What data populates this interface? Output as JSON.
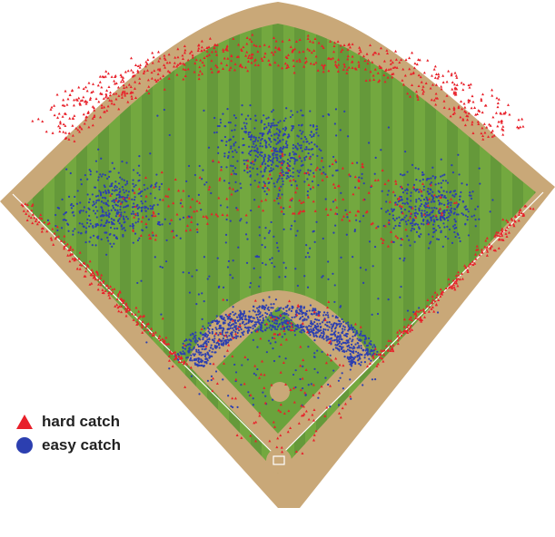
{
  "chart_data": {
    "type": "scatter",
    "title": "",
    "xlabel": "",
    "ylabel": "",
    "legend_position": "bottom-left",
    "grid": false,
    "colors": {
      "hard catch": "#e8202a",
      "easy catch": "#2c3fb0",
      "grass_light": "#73a83f",
      "grass_dark": "#5f9533",
      "dirt": "#c9a878",
      "chalk": "#ffffff"
    },
    "series": [
      {
        "name": "hard catch",
        "marker": "triangle",
        "distribution": [
          {
            "region": "deep outfield arc",
            "share": 0.46
          },
          {
            "region": "left-field foul line",
            "share": 0.14
          },
          {
            "region": "right-field foul line",
            "share": 0.14
          },
          {
            "region": "shallow outfield between fielders",
            "share": 0.16
          },
          {
            "region": "infield and foul territory",
            "share": 0.1
          }
        ]
      },
      {
        "name": "easy catch",
        "marker": "circle",
        "distribution": [
          {
            "region": "left fielder zone",
            "share": 0.15
          },
          {
            "region": "center fielder zone",
            "share": 0.17
          },
          {
            "region": "right fielder zone",
            "share": 0.15
          },
          {
            "region": "infield dirt arc",
            "share": 0.38
          },
          {
            "region": "scattered outfield",
            "share": 0.15
          }
        ]
      }
    ]
  },
  "legend": {
    "items": [
      {
        "label": "hard catch",
        "color": "#e8202a",
        "marker": "triangle"
      },
      {
        "label": "easy catch",
        "color": "#2c3fb0",
        "marker": "circle"
      }
    ]
  }
}
